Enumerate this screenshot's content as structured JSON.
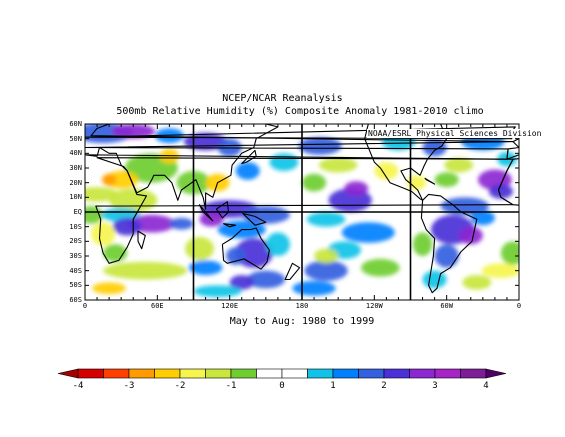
{
  "titles": {
    "line1": "NCEP/NCAR Reanalysis",
    "line2": "500mb Relative Humidity (%) Composite Anomaly 1981-2010 climo",
    "subtitle": "May to Aug: 1980 to 1999",
    "credit": "NOAA/ESRL Physical Sciences Division"
  },
  "map": {
    "lat_labels": [
      "60N",
      "50N",
      "40N",
      "30N",
      "20N",
      "10N",
      "EQ",
      "10S",
      "20S",
      "30S",
      "40S",
      "50S",
      "60S"
    ],
    "lon_labels": [
      "0",
      "60E",
      "120E",
      "180",
      "120W",
      "60W",
      "0"
    ],
    "lon_range": [
      0,
      360
    ],
    "lat_range": [
      -60,
      60
    ],
    "grid_lines": {
      "longitudes": [
        90,
        180,
        270
      ],
      "latitudes": [
        0
      ]
    }
  },
  "colorbar": {
    "labels": [
      "-4",
      "-3",
      "-2",
      "-1",
      "0",
      "1",
      "2",
      "3",
      "4"
    ],
    "colors": [
      "#d70000",
      "#ff3f00",
      "#ff9b00",
      "#ffce00",
      "#f5f54e",
      "#c8e63c",
      "#6fcd32",
      "#ffffff",
      "#ffffff",
      "#12c3e7",
      "#0080ff",
      "#3560e0",
      "#4b31d7",
      "#8c28d2",
      "#a623c8",
      "#7d1e96"
    ],
    "below_color": "#a50000",
    "above_color": "#500064"
  }
}
